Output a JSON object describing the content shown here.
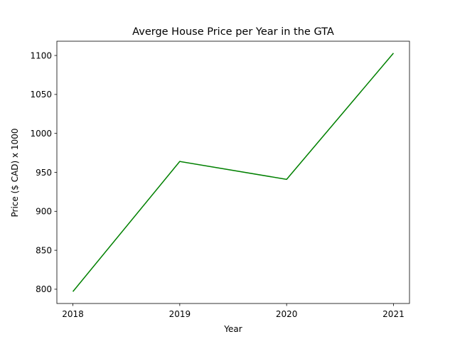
{
  "chart_data": {
    "type": "line",
    "title": "Averge House Price per Year in the GTA",
    "xlabel": "Year",
    "ylabel": "Price ($ CAD) x 1000",
    "categories": [
      "2018",
      "2019",
      "2020",
      "2021"
    ],
    "x": [
      2018,
      2019,
      2020,
      2021
    ],
    "series": [
      {
        "values": [
          797,
          964,
          941,
          1103
        ],
        "color": "#008000"
      }
    ],
    "xlim": [
      2017.85,
      2021.15
    ],
    "ylim": [
      781.7,
      1118.3
    ],
    "yticks": [
      800,
      850,
      900,
      950,
      1000,
      1050,
      1100
    ],
    "grid": false,
    "legend": "none"
  }
}
